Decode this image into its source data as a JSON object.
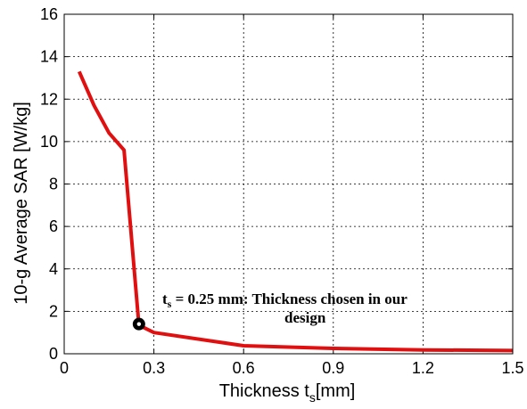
{
  "chart_data": {
    "type": "line",
    "title": "",
    "xlabel": "Thickness t",
    "xlabel_sub": "s",
    "xlabel_unit": "[mm]",
    "ylabel": "10-g Average SAR [W/kg]",
    "xlim": [
      0,
      1.5
    ],
    "ylim": [
      0,
      16
    ],
    "xticks": [
      0,
      0.3,
      0.6,
      0.9,
      1.2,
      1.5
    ],
    "xtick_labels": [
      "0",
      "0.3",
      "0.6",
      "0.9",
      "1.2",
      "1.5"
    ],
    "yticks": [
      0,
      2,
      4,
      6,
      8,
      10,
      12,
      14,
      16
    ],
    "ytick_labels": [
      "0",
      "2",
      "4",
      "6",
      "8",
      "10",
      "12",
      "14",
      "16"
    ],
    "grid": true,
    "series": [
      {
        "color": "#e01010",
        "x": [
          0.05,
          0.1,
          0.15,
          0.2,
          0.25,
          0.3,
          0.6,
          0.9,
          1.2,
          1.5
        ],
        "y": [
          13.3,
          11.7,
          10.4,
          9.6,
          1.35,
          1.0,
          0.38,
          0.25,
          0.18,
          0.15
        ]
      }
    ],
    "annotation": {
      "point": {
        "x": 0.25,
        "y": 1.4
      },
      "line1_main": "t",
      "line1_sub": "s",
      "line1_rest": " = 0.25 mm: Thickness chosen in our",
      "line2": "design",
      "marker_color": "#000000"
    }
  }
}
